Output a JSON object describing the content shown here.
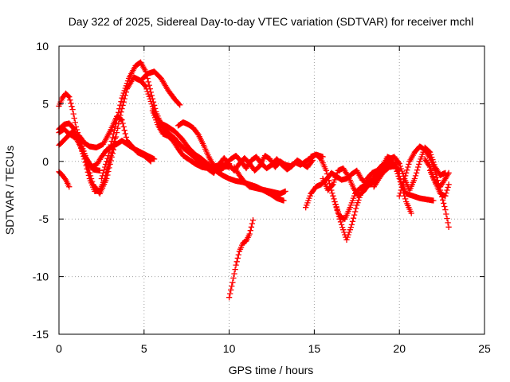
{
  "chart_data": {
    "type": "scatter",
    "title": "Day 322 of 2025, Sidereal Day-to-day VTEC variation (SDTVAR) for receiver mchl",
    "xlabel": "GPS time / hours",
    "ylabel": "SDTVAR / TECUs",
    "xlim": [
      0,
      25
    ],
    "ylim": [
      -15,
      10
    ],
    "xticks": [
      0,
      5,
      10,
      15,
      20,
      25
    ],
    "xtick_labels": [
      "0",
      "5",
      "10",
      "15",
      "20",
      "25"
    ],
    "yticks": [
      -15,
      -10,
      -5,
      0,
      5,
      10
    ],
    "ytick_labels": [
      "-15",
      "-10",
      "-5",
      "0",
      "5",
      "10"
    ],
    "grid": true,
    "marker": "+",
    "color": "#ff0000",
    "series": [
      {
        "name": "s1",
        "x": [
          0.0,
          0.2,
          0.4,
          0.6,
          0.8,
          1.0,
          1.3,
          1.6,
          2.0,
          2.4
        ],
        "y": [
          4.8,
          5.5,
          5.9,
          5.6,
          4.5,
          3.0,
          1.5,
          0.3,
          -0.7,
          -0.8
        ]
      },
      {
        "name": "s2",
        "x": [
          0.0,
          0.2,
          0.4,
          0.6
        ],
        "y": [
          -0.9,
          -1.2,
          -1.6,
          -2.2
        ]
      },
      {
        "name": "s3",
        "x": [
          0.0,
          0.3,
          0.6,
          0.9,
          1.2,
          1.5,
          1.8,
          2.1,
          2.4,
          2.7,
          3.0,
          3.3
        ],
        "y": [
          2.8,
          3.2,
          3.3,
          2.8,
          1.6,
          0.2,
          -1.5,
          -2.6,
          -2.5,
          -1.5,
          0.2,
          2.0
        ]
      },
      {
        "name": "s4",
        "x": [
          0.0,
          0.4,
          0.8,
          1.2,
          1.6,
          2.0,
          2.4,
          2.8,
          3.2,
          3.6,
          4.0,
          4.4,
          4.8,
          5.2,
          5.6,
          6.0,
          6.4,
          6.8,
          7.1
        ],
        "y": [
          1.4,
          2.0,
          2.6,
          1.8,
          0.0,
          -2.0,
          -2.8,
          -1.5,
          1.0,
          4.0,
          6.3,
          7.3,
          7.0,
          7.6,
          7.8,
          7.2,
          6.2,
          5.4,
          4.9
        ]
      },
      {
        "name": "s5",
        "x": [
          0.0,
          0.3,
          0.6,
          0.9,
          1.2,
          1.5,
          1.8,
          2.2,
          2.6,
          3.0,
          3.4,
          3.7,
          4.0,
          4.3,
          4.6,
          5.0,
          5.4
        ],
        "y": [
          2.5,
          2.8,
          2.4,
          2.1,
          2.2,
          1.6,
          1.3,
          1.2,
          1.5,
          2.6,
          3.9,
          3.6,
          1.8,
          1.3,
          0.8,
          0.5,
          0.0
        ]
      },
      {
        "name": "s6",
        "x": [
          1.0,
          1.3,
          1.6,
          1.9,
          2.2,
          2.5,
          2.8,
          3.1,
          3.4,
          3.7,
          4.0,
          4.4,
          4.8,
          5.2,
          5.6
        ],
        "y": [
          2.0,
          1.2,
          0.2,
          -0.5,
          -0.3,
          0.4,
          1.0,
          1.3,
          1.5,
          1.8,
          1.5,
          1.1,
          0.8,
          0.5,
          0.2
        ]
      },
      {
        "name": "s7",
        "x": [
          2.5,
          2.9,
          3.3,
          3.7,
          4.1,
          4.5,
          4.8,
          5.1,
          5.4,
          5.7,
          6.0,
          6.4,
          6.8,
          7.2,
          7.6,
          8.0,
          8.4,
          8.8,
          9.2,
          9.6,
          10.0
        ],
        "y": [
          -1.5,
          0.5,
          3.0,
          5.5,
          7.2,
          8.3,
          8.6,
          7.8,
          6.0,
          4.3,
          3.2,
          2.5,
          2.0,
          1.3,
          0.8,
          0.3,
          -0.2,
          -0.5,
          -0.6,
          -0.5,
          -0.4
        ]
      },
      {
        "name": "s8",
        "x": [
          4.5,
          4.8,
          5.1,
          5.4,
          5.7,
          6.0,
          6.4,
          6.8,
          7.2,
          7.6,
          8.0,
          8.4,
          8.8,
          9.2,
          9.6,
          10.0,
          10.4,
          10.8,
          11.2,
          11.6,
          12.0,
          12.4,
          12.8,
          13.2
        ],
        "y": [
          7.2,
          7.0,
          6.5,
          5.2,
          3.9,
          3.3,
          3.0,
          2.6,
          2.0,
          1.2,
          0.6,
          0.2,
          -0.3,
          -0.8,
          -1.2,
          -1.5,
          -1.7,
          -1.8,
          -2.0,
          -2.2,
          -2.5,
          -2.8,
          -3.2,
          -3.4
        ]
      },
      {
        "name": "s9",
        "x": [
          5.5,
          5.8,
          6.1,
          6.4,
          6.7,
          7.0,
          7.3,
          7.6,
          8.0,
          8.4,
          8.8,
          9.2,
          9.6,
          10.0
        ],
        "y": [
          4.4,
          3.2,
          2.4,
          2.2,
          1.8,
          1.1,
          0.5,
          0.2,
          -0.2,
          -0.5,
          -0.6,
          -0.4,
          -0.3,
          -0.5
        ]
      },
      {
        "name": "s10",
        "x": [
          7.0,
          7.3,
          7.6,
          7.9,
          8.2,
          8.5,
          8.8,
          9.1,
          9.4,
          9.7,
          10.0
        ],
        "y": [
          3.1,
          3.4,
          3.2,
          2.9,
          2.3,
          1.4,
          0.4,
          -0.4,
          -0.8,
          -0.5,
          -0.2
        ]
      },
      {
        "name": "s11",
        "x": [
          8.5,
          8.8,
          9.1,
          9.4,
          9.7,
          10.0,
          10.3,
          10.6,
          10.9,
          11.2,
          11.5,
          11.8,
          12.1,
          12.4,
          12.7,
          13.0,
          13.3,
          13.6,
          13.9,
          14.2,
          14.5,
          14.8,
          15.1,
          15.5
        ],
        "y": [
          -0.3,
          -0.7,
          -1.0,
          -0.3,
          0.3,
          -0.3,
          -0.8,
          -0.2,
          0.3,
          -0.2,
          -0.8,
          -0.4,
          0.5,
          0.2,
          -0.5,
          0.0,
          -0.3,
          -0.4,
          -0.1,
          -0.3,
          0.0,
          0.3,
          0.6,
          0.4
        ]
      },
      {
        "name": "s12",
        "x": [
          9.5,
          9.8,
          10.1,
          10.4,
          10.7,
          11.0,
          11.3,
          11.6,
          11.9,
          12.2,
          12.5,
          12.8,
          13.1,
          13.4,
          13.7,
          14.0,
          14.3,
          14.6,
          14.9
        ],
        "y": [
          -0.8,
          -0.2,
          0.2,
          0.5,
          0.0,
          -0.6,
          0.1,
          0.4,
          -0.2,
          -0.6,
          -0.3,
          0.2,
          -0.3,
          -0.7,
          -0.4,
          0.1,
          -0.2,
          -0.5,
          0.1
        ]
      },
      {
        "name": "s13",
        "x": [
          10.3,
          10.6,
          10.9,
          11.2,
          11.5,
          11.8,
          12.1,
          12.4,
          12.7,
          13.0,
          13.3
        ],
        "y": [
          -0.5,
          -1.2,
          -1.8,
          -2.2,
          -2.3,
          -2.4,
          -2.5,
          -2.6,
          -2.7,
          -2.8,
          -2.6
        ]
      },
      {
        "name": "s14",
        "x": [
          10.0,
          10.2,
          10.4,
          10.6,
          10.8,
          11.0,
          11.2,
          11.4
        ],
        "y": [
          -11.8,
          -10.5,
          -9.0,
          -7.8,
          -7.1,
          -6.9,
          -6.3,
          -5.1
        ]
      },
      {
        "name": "s15",
        "x": [
          14.5,
          14.8,
          15.1,
          15.4,
          15.7,
          16.0,
          16.3,
          16.6,
          16.9,
          17.2,
          17.5,
          17.8,
          18.1,
          18.4,
          18.7,
          19.0,
          19.3,
          19.6,
          20.0,
          20.4,
          20.7
        ],
        "y": [
          -4.0,
          -2.8,
          -2.2,
          -2.0,
          -1.6,
          -1.0,
          -1.3,
          -1.6,
          -1.5,
          -1.1,
          -0.8,
          -1.6,
          -1.9,
          -1.6,
          -1.0,
          -0.5,
          0.4,
          0.2,
          -1.5,
          -3.5,
          -4.5
        ]
      },
      {
        "name": "s16",
        "x": [
          14.8,
          15.1,
          15.4,
          15.7,
          16.0,
          16.3,
          16.6,
          16.9,
          17.2,
          17.5,
          17.8,
          18.1,
          18.4,
          18.7,
          19.0,
          19.3,
          19.6,
          20.0
        ],
        "y": [
          0.4,
          0.6,
          0.2,
          -0.8,
          -2.5,
          -4.0,
          -5.5,
          -6.8,
          -5.5,
          -3.8,
          -2.5,
          -1.5,
          -1.0,
          -0.8,
          -0.3,
          0.0,
          -0.2,
          -0.8
        ]
      },
      {
        "name": "s17",
        "x": [
          15.5,
          15.8,
          16.1,
          16.4,
          16.7,
          17.0,
          17.3,
          17.6,
          17.9,
          18.2,
          18.5,
          18.8,
          19.1,
          19.4,
          19.7
        ],
        "y": [
          -1.5,
          -2.5,
          -2.0,
          -0.8,
          -0.6,
          -1.3,
          -2.3,
          -3.0,
          -2.6,
          -2.0,
          -1.6,
          -1.2,
          -0.9,
          -0.5,
          -0.4
        ]
      },
      {
        "name": "s18",
        "x": [
          16.2,
          16.5,
          16.8,
          17.1,
          17.4,
          17.7,
          18.0,
          18.3,
          18.6,
          18.9,
          19.2,
          19.5,
          19.8,
          20.1,
          20.4,
          20.8,
          21.2,
          21.6,
          22.0
        ],
        "y": [
          -3.5,
          -4.8,
          -5.0,
          -4.0,
          -2.8,
          -2.3,
          -2.1,
          -2.0,
          -1.7,
          -1.2,
          -0.5,
          -0.2,
          -0.3,
          -1.8,
          -2.8,
          -3.0,
          -3.2,
          -3.3,
          -3.4
        ]
      },
      {
        "name": "s19",
        "x": [
          18.5,
          18.8,
          19.1,
          19.4,
          19.7,
          20.0,
          20.3,
          20.6,
          20.9,
          21.2,
          21.5,
          21.8,
          22.1,
          22.4,
          22.7
        ],
        "y": [
          -2.2,
          -1.5,
          -0.8,
          0.2,
          0.4,
          -0.2,
          -1.5,
          -2.5,
          -1.5,
          0.0,
          1.2,
          0.8,
          -0.5,
          -1.2,
          -1.0
        ]
      },
      {
        "name": "s20",
        "x": [
          20.0,
          20.3,
          20.6,
          20.9,
          21.2,
          21.5,
          21.8,
          22.1,
          22.4,
          22.7,
          22.9
        ],
        "y": [
          -3.0,
          -1.5,
          0.0,
          0.8,
          1.3,
          1.0,
          0.3,
          -0.8,
          -2.5,
          -4.2,
          -5.7
        ]
      },
      {
        "name": "s21",
        "x": [
          21.5,
          21.8,
          22.1,
          22.4,
          22.7,
          22.9
        ],
        "y": [
          0.2,
          -0.5,
          -1.8,
          -2.8,
          -3.0,
          -2.0
        ]
      },
      {
        "name": "s22",
        "x": [
          21.8,
          22.1,
          22.4,
          22.7,
          22.9
        ],
        "y": [
          -0.8,
          -1.8,
          -2.2,
          -1.5,
          -1.0
        ]
      }
    ]
  }
}
